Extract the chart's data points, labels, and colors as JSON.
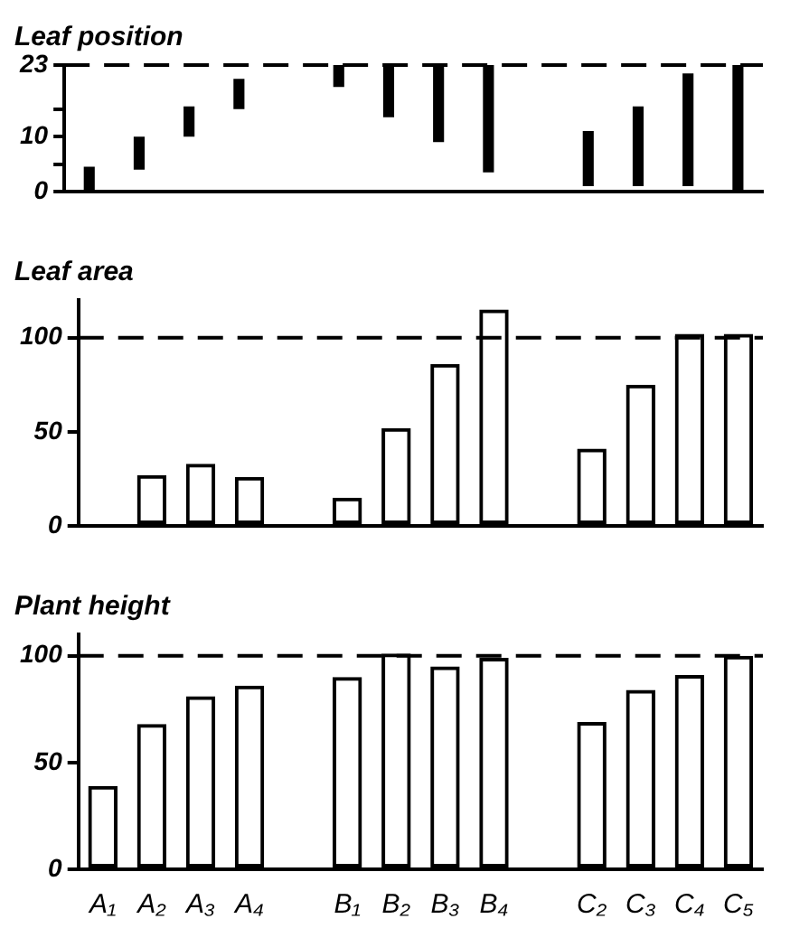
{
  "chart_data": [
    {
      "type": "bar",
      "title": "Leaf position",
      "categories": [
        null,
        null,
        null,
        null,
        null,
        null,
        null,
        null,
        null,
        null,
        null,
        null,
        null,
        null
      ],
      "values": [
        4.5,
        6,
        5.5,
        5.5,
        null,
        4,
        9.5,
        14,
        19.5,
        null,
        10,
        14.5,
        20.5,
        23
      ],
      "base": [
        0,
        4,
        10,
        15,
        null,
        19,
        13.5,
        9,
        3.5,
        null,
        1,
        1,
        1,
        0
      ],
      "color": "#000000",
      "ylim": [
        0,
        23
      ],
      "yticks": [
        0,
        {
          "value": 5,
          "label": null
        },
        10,
        {
          "value": 15,
          "label": null
        },
        23
      ],
      "ref_lines": [
        {
          "axis": "y",
          "value": 23,
          "line_style": "dashed"
        }
      ],
      "grid": false
    },
    {
      "type": "bar",
      "title": "Leaf area",
      "categories": [
        null,
        null,
        null,
        null,
        null,
        null,
        null,
        null,
        null,
        null,
        null,
        null,
        null,
        null
      ],
      "values": [
        1,
        27,
        33,
        26,
        null,
        15,
        52,
        86,
        115,
        null,
        41,
        75,
        102,
        102
      ],
      "color": "#000000",
      "ylim": [
        0,
        120
      ],
      "yticks": [
        0,
        50,
        100
      ],
      "ref_lines": [
        {
          "axis": "y",
          "value": 100,
          "line_style": "dashed"
        }
      ],
      "grid": false
    },
    {
      "type": "bar",
      "title": "Plant height",
      "categories": [
        "A₁",
        "A₂",
        "A₃",
        "A₄",
        null,
        "B₁",
        "B₂",
        "B₃",
        "B₄",
        null,
        "C₂",
        "C₃",
        "C₄",
        "C₅"
      ],
      "values": [
        39,
        68,
        81,
        86,
        null,
        90,
        101,
        95,
        99,
        null,
        69,
        84,
        91,
        100
      ],
      "color": "#000000",
      "ylim": [
        0,
        110
      ],
      "yticks": [
        0,
        50,
        100
      ],
      "ref_lines": [
        {
          "axis": "y",
          "value": 100,
          "line_style": "dashed"
        }
      ],
      "grid": false
    }
  ]
}
